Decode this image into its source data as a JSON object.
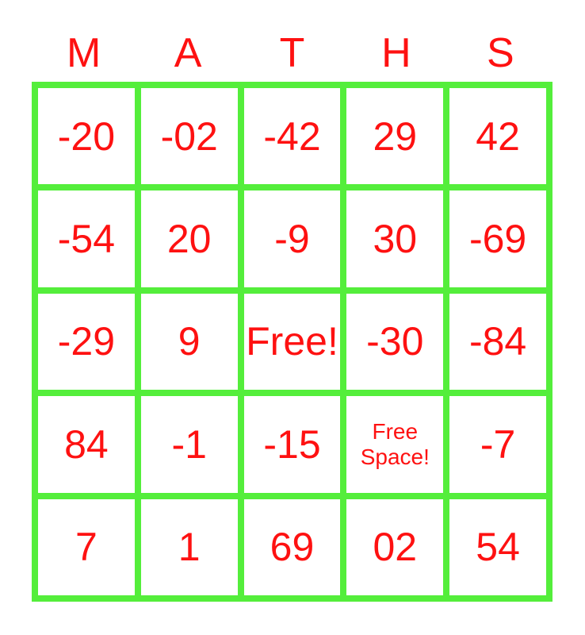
{
  "card": {
    "title_letters": [
      "M",
      "A",
      "T",
      "H",
      "S"
    ],
    "rows": [
      [
        "-20",
        "-02",
        "-42",
        "29",
        "42"
      ],
      [
        "-54",
        "20",
        "-9",
        "30",
        "-69"
      ],
      [
        "-29",
        "9",
        "Free!",
        "-30",
        "-84"
      ],
      [
        "84",
        "-1",
        "-15",
        "Free Space!",
        "-7"
      ],
      [
        "7",
        "1",
        "69",
        "02",
        "54"
      ]
    ]
  },
  "colors": {
    "grid_green": "#54ee3b",
    "text_red": "#fe1111",
    "background": "#ffffff"
  }
}
